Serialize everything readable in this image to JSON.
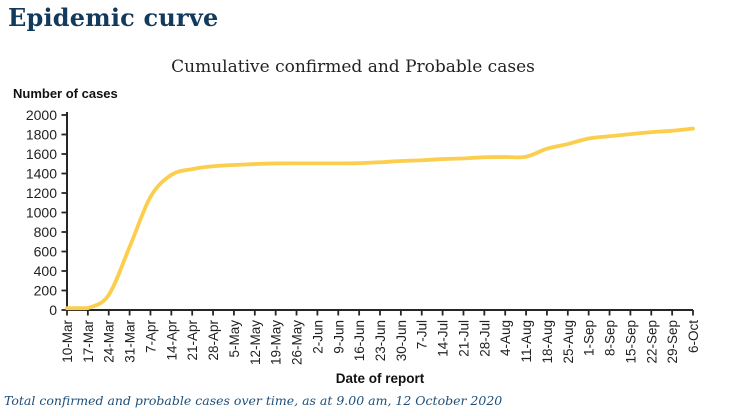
{
  "page": {
    "title": "Epidemic curve",
    "footer_note": "Total confirmed and probable cases over time, as at 9.00 am, 12 October 2020"
  },
  "colors": {
    "page_title": "#123a5c",
    "footer": "#1f4e79",
    "line": "#FBCE4D",
    "axis": "#262626",
    "tick_label": "#222222"
  },
  "chart_data": {
    "type": "line",
    "title": "Cumulative confirmed and Probable cases",
    "xlabel": "Date of report",
    "ylabel": "Number of cases",
    "ylim": [
      0,
      2000
    ],
    "yticks": [
      0,
      200,
      400,
      600,
      800,
      1000,
      1200,
      1400,
      1600,
      1800,
      2000
    ],
    "grid": false,
    "legend_position": "none",
    "x_tick_rotation": 90,
    "categories": [
      "10-Mar",
      "17-Mar",
      "24-Mar",
      "31-Mar",
      "7-Apr",
      "14-Apr",
      "21-Apr",
      "28-Apr",
      "5-May",
      "12-May",
      "19-May",
      "26-May",
      "2-Jun",
      "9-Jun",
      "16-Jun",
      "23-Jun",
      "30-Jun",
      "7-Jul",
      "14-Jul",
      "21-Jul",
      "28-Jul",
      "4-Aug",
      "11-Aug",
      "18-Aug",
      "25-Aug",
      "1-Sep",
      "8-Sep",
      "15-Sep",
      "22-Sep",
      "29-Sep",
      "6-Oct"
    ],
    "values": [
      5,
      20,
      155,
      647,
      1160,
      1386,
      1445,
      1474,
      1487,
      1497,
      1503,
      1504,
      1504,
      1504,
      1506,
      1515,
      1528,
      1536,
      1548,
      1555,
      1567,
      1569,
      1572,
      1654,
      1702,
      1759,
      1782,
      1804,
      1824,
      1838,
      1861
    ]
  }
}
